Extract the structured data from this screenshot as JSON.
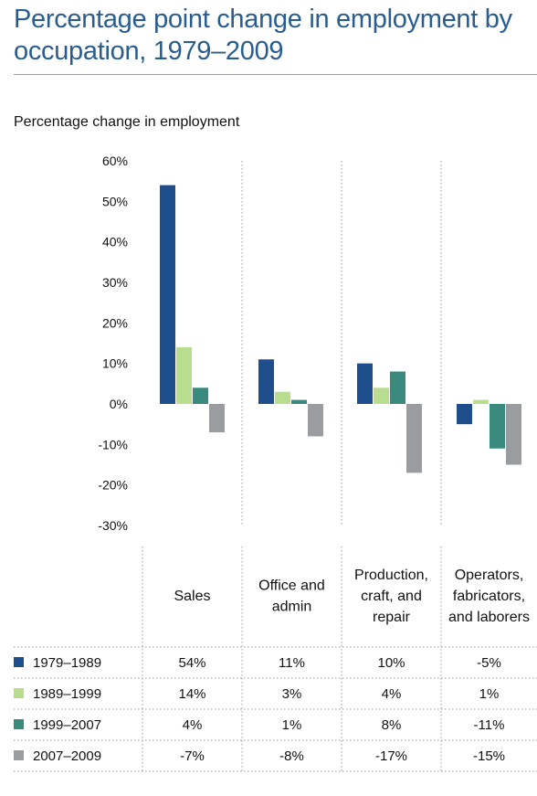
{
  "title": "Percentage point change in employment by occupation, 1979–2009",
  "chart_data": {
    "type": "bar",
    "ylabel": "Percentage change in employment",
    "ylim": [
      -30,
      60
    ],
    "yticks": [
      60,
      50,
      40,
      30,
      20,
      10,
      0,
      -10,
      -20,
      -30
    ],
    "ytick_suffix": "%",
    "categories": [
      "Sales",
      "Office and admin",
      "Production, craft, and repair",
      "Operators, fabricators, and laborers"
    ],
    "category_lines": [
      [
        "Sales"
      ],
      [
        "Office and",
        "admin"
      ],
      [
        "Production,",
        "craft, and",
        "repair"
      ],
      [
        "Operators,",
        "fabricators,",
        "and laborers"
      ]
    ],
    "series": [
      {
        "name": "1979–1989",
        "color": "#1f4e8c",
        "values": [
          54,
          11,
          10,
          -5
        ],
        "labels": [
          "54%",
          "11%",
          "10%",
          "-5%"
        ]
      },
      {
        "name": "1989–1999",
        "color": "#b9dd8f",
        "values": [
          14,
          3,
          4,
          1
        ],
        "labels": [
          "14%",
          "3%",
          "4%",
          "1%"
        ]
      },
      {
        "name": "1999–2007",
        "color": "#3a8a7e",
        "values": [
          4,
          1,
          8,
          -11
        ],
        "labels": [
          "4%",
          "1%",
          "8%",
          "-11%"
        ]
      },
      {
        "name": "2007–2009",
        "color": "#9a9ca0",
        "values": [
          -7,
          -8,
          -17,
          -15
        ],
        "labels": [
          "-7%",
          "-8%",
          "-17%",
          "-15%"
        ]
      }
    ],
    "grid": false,
    "legend": "table-bottom-left"
  }
}
